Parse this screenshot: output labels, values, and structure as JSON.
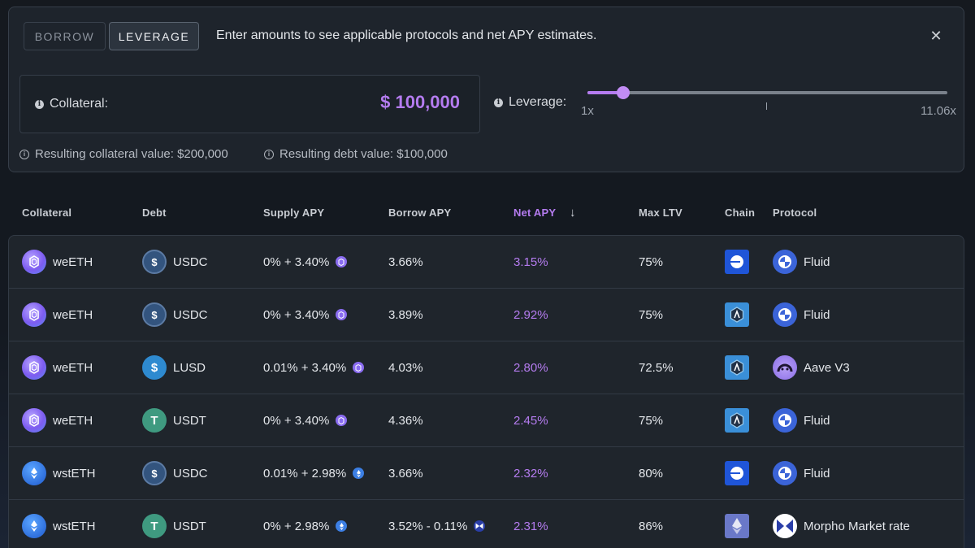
{
  "mode_tabs": {
    "borrow": "BORROW",
    "leverage": "LEVERAGE",
    "active": "leverage"
  },
  "hint_text": "Enter amounts to see applicable protocols and net APY estimates.",
  "close_glyph": "✕",
  "collateral": {
    "label": "Collateral:",
    "value": "$ 100,000"
  },
  "leverage": {
    "label": "Leverage:",
    "min_label": "1x",
    "max_label": "11.06x",
    "min": 1,
    "max": 11.06,
    "value": 2
  },
  "results": {
    "collateral_value": "Resulting collateral value: $200,000",
    "debt_value": "Resulting debt value: $100,000"
  },
  "columns": {
    "collateral": "Collateral",
    "debt": "Debt",
    "supply_apy": "Supply APY",
    "borrow_apy": "Borrow APY",
    "net_apy": "Net APY",
    "max_ltv": "Max LTV",
    "chain": "Chain",
    "protocol": "Protocol"
  },
  "sort": {
    "column": "net_apy",
    "direction": "desc",
    "arrow": "↓"
  },
  "colors": {
    "accent": "#b57cf0",
    "panel": "#1e242c",
    "border": "#363e49"
  },
  "rows": [
    {
      "collateral": "weETH",
      "collateral_icon": "weeth-icon",
      "debt": "USDC",
      "debt_icon": "usdc-icon",
      "supply_apy": "0% + 3.40%",
      "supply_icon": "weeth-icon",
      "borrow_apy": "3.66%",
      "borrow_icon": "",
      "net_apy": "3.15%",
      "max_ltv": "75%",
      "chain": "base-chain-icon",
      "protocol": "Fluid",
      "protocol_icon": "fluid-icon"
    },
    {
      "collateral": "weETH",
      "collateral_icon": "weeth-icon",
      "debt": "USDC",
      "debt_icon": "usdc-icon",
      "supply_apy": "0% + 3.40%",
      "supply_icon": "weeth-icon",
      "borrow_apy": "3.89%",
      "borrow_icon": "",
      "net_apy": "2.92%",
      "max_ltv": "75%",
      "chain": "arbitrum-chain-icon",
      "protocol": "Fluid",
      "protocol_icon": "fluid-icon"
    },
    {
      "collateral": "weETH",
      "collateral_icon": "weeth-icon",
      "debt": "LUSD",
      "debt_icon": "lusd-icon",
      "supply_apy": "0.01% + 3.40%",
      "supply_icon": "weeth-icon",
      "borrow_apy": "4.03%",
      "borrow_icon": "",
      "net_apy": "2.80%",
      "max_ltv": "72.5%",
      "chain": "arbitrum-chain-icon",
      "protocol": "Aave V3",
      "protocol_icon": "aave-icon"
    },
    {
      "collateral": "weETH",
      "collateral_icon": "weeth-icon",
      "debt": "USDT",
      "debt_icon": "usdt-icon",
      "supply_apy": "0% + 3.40%",
      "supply_icon": "weeth-icon",
      "borrow_apy": "4.36%",
      "borrow_icon": "",
      "net_apy": "2.45%",
      "max_ltv": "75%",
      "chain": "arbitrum-chain-icon",
      "protocol": "Fluid",
      "protocol_icon": "fluid-icon"
    },
    {
      "collateral": "wstETH",
      "collateral_icon": "wsteth-icon",
      "debt": "USDC",
      "debt_icon": "usdc-icon",
      "supply_apy": "0.01% + 2.98%",
      "supply_icon": "wsteth-icon",
      "borrow_apy": "3.66%",
      "borrow_icon": "",
      "net_apy": "2.32%",
      "max_ltv": "80%",
      "chain": "base-chain-icon",
      "protocol": "Fluid",
      "protocol_icon": "fluid-icon"
    },
    {
      "collateral": "wstETH",
      "collateral_icon": "wsteth-icon",
      "debt": "USDT",
      "debt_icon": "usdt-icon",
      "supply_apy": "0% + 2.98%",
      "supply_icon": "wsteth-icon",
      "borrow_apy": "3.52% - 0.11%",
      "borrow_icon": "morpho-icon",
      "net_apy": "2.31%",
      "max_ltv": "86%",
      "chain": "ethereum-chain-icon",
      "protocol": "Morpho Market rate",
      "protocol_icon": "morpho-icon"
    }
  ]
}
